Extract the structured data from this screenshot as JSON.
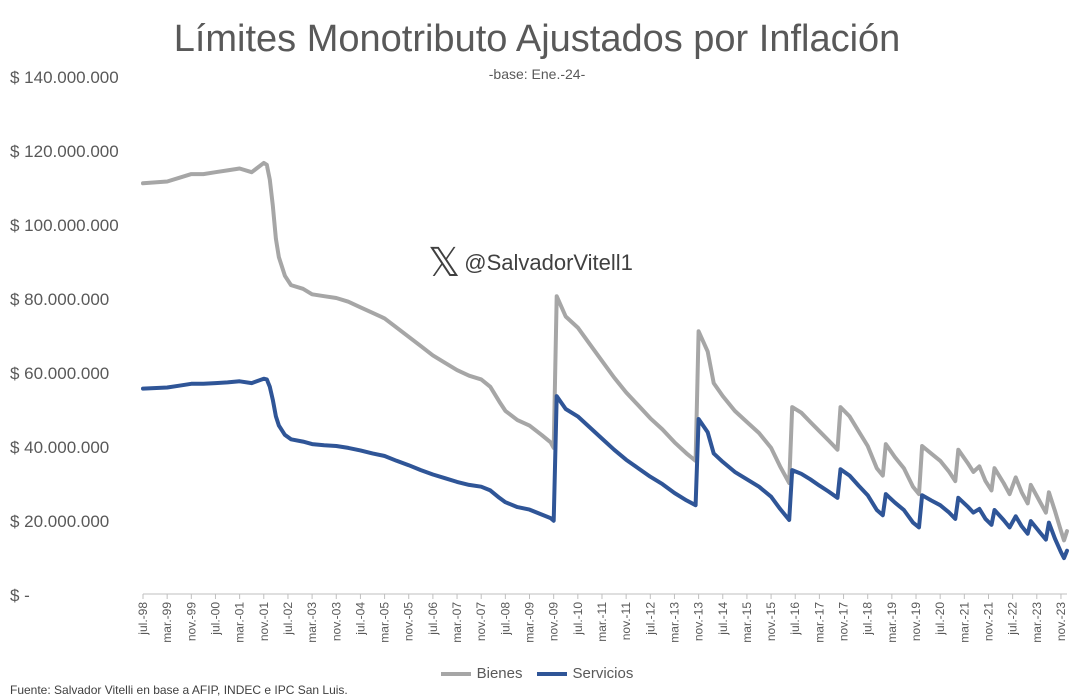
{
  "title": "Límites Monotributo Ajustados por Inflación",
  "subtitle": "-base: Ene.-24-",
  "watermark": {
    "icon": "x-logo-icon",
    "handle": "@SalvadorVitell1"
  },
  "source": "Fuente: Salvador Vitelli en base a AFIP, INDEC e IPC San Luis.",
  "colors": {
    "bienes": "#a6a6a6",
    "servicios": "#2f5597",
    "text": "#595959"
  },
  "chart_data": {
    "type": "line",
    "y_ticks": [
      {
        "value": 0,
        "label": "$ -"
      },
      {
        "value": 20000000,
        "label": "$ 20.000.000"
      },
      {
        "value": 40000000,
        "label": "$ 40.000.000"
      },
      {
        "value": 60000000,
        "label": "$ 60.000.000"
      },
      {
        "value": 80000000,
        "label": "$ 80.000.000"
      },
      {
        "value": 100000000,
        "label": "$ 100.000.000"
      },
      {
        "value": 120000000,
        "label": "$ 120.000.000"
      },
      {
        "value": 140000000,
        "label": "$ 140.000.000"
      }
    ],
    "ylim": [
      0,
      140000000
    ],
    "x_ticks": [
      "jul.-98",
      "mar.-99",
      "nov.-99",
      "jul.-00",
      "mar.-01",
      "nov.-01",
      "jul.-02",
      "mar.-03",
      "nov.-03",
      "jul.-04",
      "mar.-05",
      "nov.-05",
      "jul.-06",
      "mar.-07",
      "nov.-07",
      "jul.-08",
      "mar.-09",
      "nov.-09",
      "jul.-10",
      "mar.-11",
      "nov.-11",
      "jul.-12",
      "mar.-13",
      "nov.-13",
      "jul.-14",
      "mar.-15",
      "nov.-15",
      "jul.-16",
      "mar.-17",
      "nov.-17",
      "jul.-18",
      "mar.-19",
      "nov.-19",
      "jul.-20",
      "mar.-21",
      "nov.-21",
      "jul.-22",
      "mar.-23",
      "nov.-23"
    ],
    "x_range": [
      "1998-07",
      "2024-01"
    ],
    "legend_position": "bottom",
    "series": [
      {
        "name": "Bienes",
        "points": [
          [
            "1998-07",
            111000000
          ],
          [
            "1999-03",
            111500000
          ],
          [
            "1999-07",
            112500000
          ],
          [
            "1999-11",
            113500000
          ],
          [
            "2000-03",
            113500000
          ],
          [
            "2000-07",
            114000000
          ],
          [
            "2000-11",
            114500000
          ],
          [
            "2001-03",
            115000000
          ],
          [
            "2001-07",
            114000000
          ],
          [
            "2001-11",
            116500000
          ],
          [
            "2001-12",
            116000000
          ],
          [
            "2002-01",
            112000000
          ],
          [
            "2002-02",
            105000000
          ],
          [
            "2002-03",
            96000000
          ],
          [
            "2002-04",
            91000000
          ],
          [
            "2002-06",
            86000000
          ],
          [
            "2002-08",
            83500000
          ],
          [
            "2002-12",
            82500000
          ],
          [
            "2003-03",
            81000000
          ],
          [
            "2003-07",
            80500000
          ],
          [
            "2003-11",
            80000000
          ],
          [
            "2004-03",
            79000000
          ],
          [
            "2004-07",
            77500000
          ],
          [
            "2004-11",
            76000000
          ],
          [
            "2005-03",
            74500000
          ],
          [
            "2005-07",
            72000000
          ],
          [
            "2005-11",
            69500000
          ],
          [
            "2006-03",
            67000000
          ],
          [
            "2006-07",
            64500000
          ],
          [
            "2006-11",
            62500000
          ],
          [
            "2007-03",
            60500000
          ],
          [
            "2007-07",
            59000000
          ],
          [
            "2007-11",
            58000000
          ],
          [
            "2008-02",
            56000000
          ],
          [
            "2008-05",
            52000000
          ],
          [
            "2008-07",
            49500000
          ],
          [
            "2008-11",
            47000000
          ],
          [
            "2009-03",
            45500000
          ],
          [
            "2009-07",
            43000000
          ],
          [
            "2009-10",
            41000000
          ],
          [
            "2009-11",
            39500000
          ],
          [
            "2009-12",
            80500000
          ],
          [
            "2010-03",
            75000000
          ],
          [
            "2010-07",
            72000000
          ],
          [
            "2010-11",
            67500000
          ],
          [
            "2011-03",
            63000000
          ],
          [
            "2011-07",
            58500000
          ],
          [
            "2011-11",
            54500000
          ],
          [
            "2012-03",
            51000000
          ],
          [
            "2012-07",
            47500000
          ],
          [
            "2012-11",
            44500000
          ],
          [
            "2013-03",
            41000000
          ],
          [
            "2013-07",
            38000000
          ],
          [
            "2013-10",
            36000000
          ],
          [
            "2013-11",
            71000000
          ],
          [
            "2014-02",
            65500000
          ],
          [
            "2014-04",
            57000000
          ],
          [
            "2014-07",
            53500000
          ],
          [
            "2014-11",
            49500000
          ],
          [
            "2015-03",
            46500000
          ],
          [
            "2015-07",
            43500000
          ],
          [
            "2015-11",
            39500000
          ],
          [
            "2016-02",
            34500000
          ],
          [
            "2016-05",
            30000000
          ],
          [
            "2016-06",
            50500000
          ],
          [
            "2016-09",
            49000000
          ],
          [
            "2016-12",
            46500000
          ],
          [
            "2017-03",
            44000000
          ],
          [
            "2017-06",
            41500000
          ],
          [
            "2017-09",
            39000000
          ],
          [
            "2017-10",
            50500000
          ],
          [
            "2018-01",
            48000000
          ],
          [
            "2018-04",
            44000000
          ],
          [
            "2018-07",
            40000000
          ],
          [
            "2018-10",
            34000000
          ],
          [
            "2018-12",
            32000000
          ],
          [
            "2019-01",
            40500000
          ],
          [
            "2019-04",
            37000000
          ],
          [
            "2019-07",
            34000000
          ],
          [
            "2019-10",
            29000000
          ],
          [
            "2019-12",
            27000000
          ],
          [
            "2020-01",
            40000000
          ],
          [
            "2020-04",
            38000000
          ],
          [
            "2020-07",
            36000000
          ],
          [
            "2020-10",
            33000000
          ],
          [
            "2020-12",
            30500000
          ],
          [
            "2021-01",
            39000000
          ],
          [
            "2021-04",
            35500000
          ],
          [
            "2021-06",
            33000000
          ],
          [
            "2021-08",
            34500000
          ],
          [
            "2021-10",
            30500000
          ],
          [
            "2021-12",
            28000000
          ],
          [
            "2022-01",
            34000000
          ],
          [
            "2022-04",
            30000000
          ],
          [
            "2022-06",
            27000000
          ],
          [
            "2022-08",
            31500000
          ],
          [
            "2022-10",
            27500000
          ],
          [
            "2022-12",
            24500000
          ],
          [
            "2023-01",
            29500000
          ],
          [
            "2023-04",
            25000000
          ],
          [
            "2023-06",
            22000000
          ],
          [
            "2023-07",
            27500000
          ],
          [
            "2023-09",
            22500000
          ],
          [
            "2023-11",
            17000000
          ],
          [
            "2023-12",
            14500000
          ],
          [
            "2024-01",
            17000000
          ]
        ]
      },
      {
        "name": "Servicios",
        "points": [
          [
            "1998-07",
            55500000
          ],
          [
            "1999-03",
            55800000
          ],
          [
            "1999-07",
            56300000
          ],
          [
            "1999-11",
            56800000
          ],
          [
            "2000-03",
            56800000
          ],
          [
            "2000-07",
            57000000
          ],
          [
            "2000-11",
            57200000
          ],
          [
            "2001-03",
            57500000
          ],
          [
            "2001-07",
            57000000
          ],
          [
            "2001-11",
            58200000
          ],
          [
            "2001-12",
            58000000
          ],
          [
            "2002-01",
            56000000
          ],
          [
            "2002-02",
            52500000
          ],
          [
            "2002-03",
            48000000
          ],
          [
            "2002-04",
            45500000
          ],
          [
            "2002-06",
            43000000
          ],
          [
            "2002-08",
            41800000
          ],
          [
            "2002-12",
            41200000
          ],
          [
            "2003-03",
            40500000
          ],
          [
            "2003-07",
            40200000
          ],
          [
            "2003-11",
            40000000
          ],
          [
            "2004-03",
            39500000
          ],
          [
            "2004-07",
            38800000
          ],
          [
            "2004-11",
            38000000
          ],
          [
            "2005-03",
            37300000
          ],
          [
            "2005-07",
            36000000
          ],
          [
            "2005-11",
            34800000
          ],
          [
            "2006-03",
            33500000
          ],
          [
            "2006-07",
            32300000
          ],
          [
            "2006-11",
            31300000
          ],
          [
            "2007-03",
            30300000
          ],
          [
            "2007-07",
            29500000
          ],
          [
            "2007-11",
            29000000
          ],
          [
            "2008-02",
            28000000
          ],
          [
            "2008-05",
            26000000
          ],
          [
            "2008-07",
            24800000
          ],
          [
            "2008-11",
            23500000
          ],
          [
            "2009-03",
            22800000
          ],
          [
            "2009-07",
            21500000
          ],
          [
            "2009-10",
            20500000
          ],
          [
            "2009-11",
            19800000
          ],
          [
            "2009-12",
            53500000
          ],
          [
            "2010-03",
            50000000
          ],
          [
            "2010-07",
            48000000
          ],
          [
            "2010-11",
            45000000
          ],
          [
            "2011-03",
            42000000
          ],
          [
            "2011-07",
            39000000
          ],
          [
            "2011-11",
            36300000
          ],
          [
            "2012-03",
            34000000
          ],
          [
            "2012-07",
            31700000
          ],
          [
            "2012-11",
            29700000
          ],
          [
            "2013-03",
            27300000
          ],
          [
            "2013-07",
            25300000
          ],
          [
            "2013-10",
            24000000
          ],
          [
            "2013-11",
            47300000
          ],
          [
            "2014-02",
            43700000
          ],
          [
            "2014-04",
            38000000
          ],
          [
            "2014-07",
            35700000
          ],
          [
            "2014-11",
            33000000
          ],
          [
            "2015-03",
            31000000
          ],
          [
            "2015-07",
            29000000
          ],
          [
            "2015-11",
            26300000
          ],
          [
            "2016-02",
            23000000
          ],
          [
            "2016-05",
            20000000
          ],
          [
            "2016-06",
            33500000
          ],
          [
            "2016-09",
            32500000
          ],
          [
            "2016-12",
            31000000
          ],
          [
            "2017-03",
            29300000
          ],
          [
            "2017-06",
            27700000
          ],
          [
            "2017-09",
            26000000
          ],
          [
            "2017-10",
            33700000
          ],
          [
            "2018-01",
            32000000
          ],
          [
            "2018-04",
            29300000
          ],
          [
            "2018-07",
            26700000
          ],
          [
            "2018-10",
            22700000
          ],
          [
            "2018-12",
            21300000
          ],
          [
            "2019-01",
            27000000
          ],
          [
            "2019-04",
            24700000
          ],
          [
            "2019-07",
            22700000
          ],
          [
            "2019-10",
            19300000
          ],
          [
            "2019-12",
            18000000
          ],
          [
            "2020-01",
            26700000
          ],
          [
            "2020-04",
            25300000
          ],
          [
            "2020-07",
            24000000
          ],
          [
            "2020-10",
            22000000
          ],
          [
            "2020-12",
            20300000
          ],
          [
            "2021-01",
            26000000
          ],
          [
            "2021-04",
            23700000
          ],
          [
            "2021-06",
            22000000
          ],
          [
            "2021-08",
            23000000
          ],
          [
            "2021-10",
            20300000
          ],
          [
            "2021-12",
            18700000
          ],
          [
            "2022-01",
            22700000
          ],
          [
            "2022-04",
            20000000
          ],
          [
            "2022-06",
            18000000
          ],
          [
            "2022-08",
            21000000
          ],
          [
            "2022-10",
            18300000
          ],
          [
            "2022-12",
            16300000
          ],
          [
            "2023-01",
            19700000
          ],
          [
            "2023-04",
            16700000
          ],
          [
            "2023-06",
            14700000
          ],
          [
            "2023-07",
            19300000
          ],
          [
            "2023-09",
            15000000
          ],
          [
            "2023-11",
            11300000
          ],
          [
            "2023-12",
            9700000
          ],
          [
            "2024-01",
            11700000
          ]
        ]
      }
    ]
  }
}
